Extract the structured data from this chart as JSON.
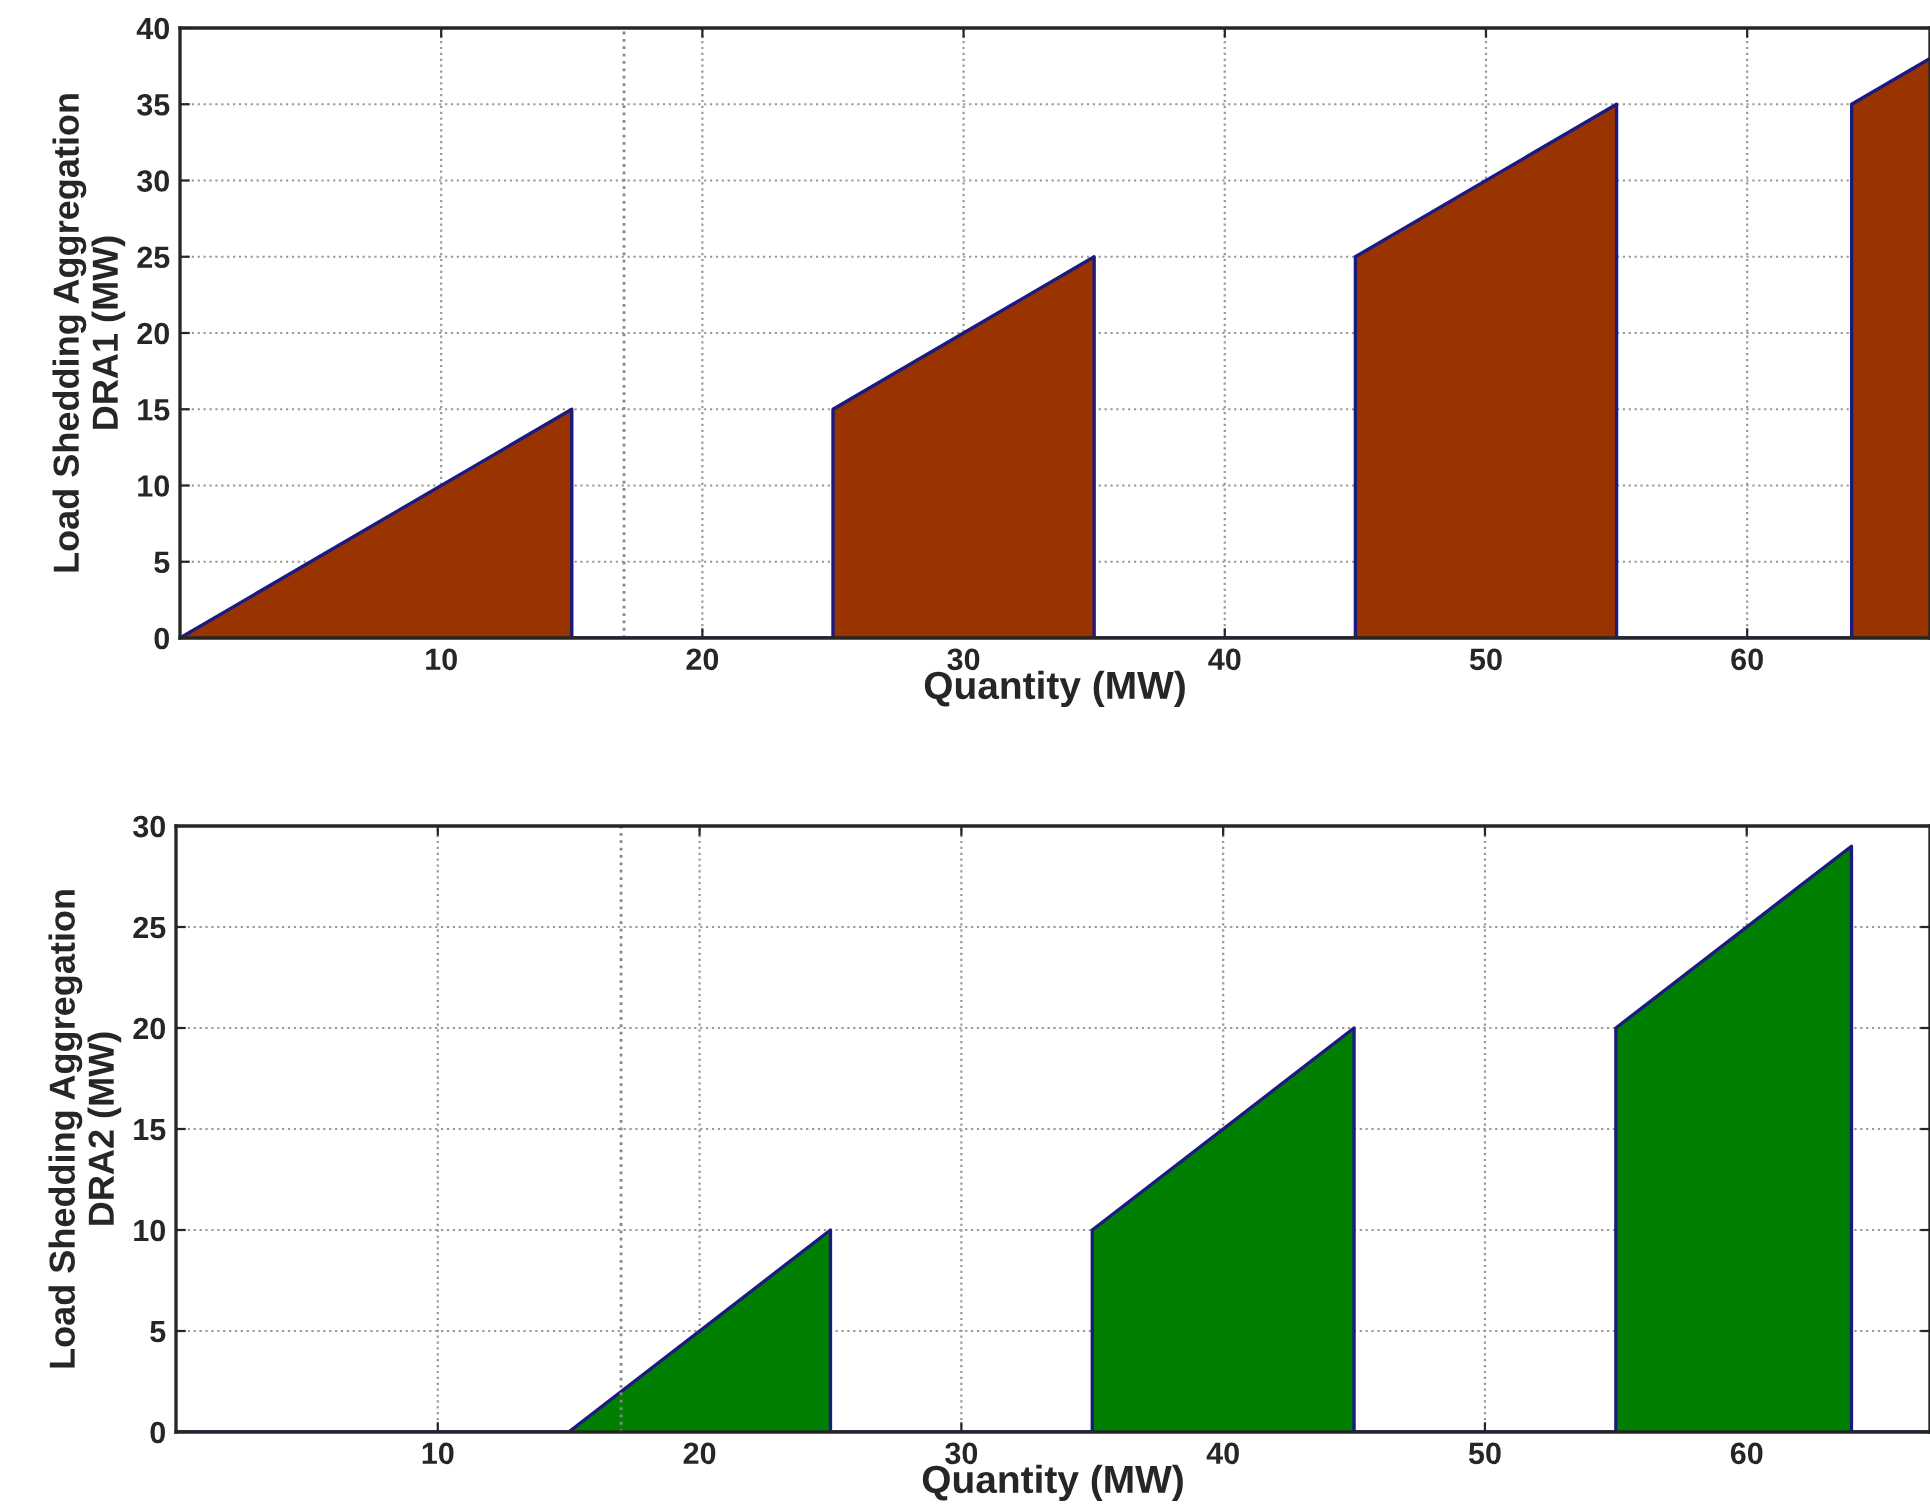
{
  "chart_data": [
    {
      "type": "area",
      "xlabel": "Quantity (MW)",
      "ylabel": "Load Shedding Aggregation\nDRA1 (MW)",
      "series": [
        {
          "color": "#993300",
          "x": [
            0,
            15,
            15,
            25,
            25,
            35,
            35,
            45,
            45,
            55,
            55,
            64,
            64,
            67
          ],
          "values": [
            0,
            15,
            0,
            0,
            15,
            25,
            0,
            0,
            25,
            35,
            0,
            0,
            35,
            38
          ]
        }
      ],
      "xlim": [
        0,
        67
      ],
      "xticks": [
        10,
        20,
        30,
        40,
        50,
        60
      ],
      "ylim": [
        0,
        40
      ],
      "yticks": [
        0,
        5,
        10,
        15,
        20,
        25,
        30,
        35,
        40
      ],
      "ref_lines": [
        {
          "axis": "x",
          "value": 17,
          "line_style": "dotted",
          "color": "#888888"
        }
      ],
      "grid": true
    },
    {
      "type": "area",
      "xlabel": "Quantity (MW)",
      "ylabel": "Load Shedding Aggregation\nDRA2 (MW)",
      "series": [
        {
          "color": "#007f00",
          "x": [
            0,
            15,
            25,
            25,
            35,
            35,
            45,
            45,
            55,
            55,
            64,
            64,
            67
          ],
          "values": [
            0,
            0,
            10,
            0,
            0,
            10,
            20,
            0,
            0,
            20,
            29,
            0,
            0
          ]
        }
      ],
      "xlim": [
        0,
        67
      ],
      "xticks": [
        10,
        20,
        30,
        40,
        50,
        60
      ],
      "ylim": [
        0,
        30
      ],
      "yticks": [
        0,
        5,
        10,
        15,
        20,
        25,
        30
      ],
      "ref_lines": [
        {
          "axis": "x",
          "value": 17,
          "line_style": "dotted",
          "color": "#888888"
        }
      ],
      "grid": true
    }
  ]
}
